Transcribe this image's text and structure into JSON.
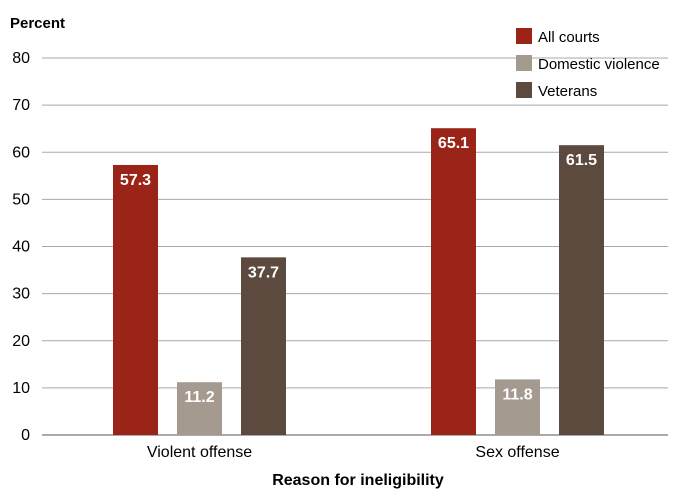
{
  "chart_data": {
    "type": "bar",
    "ylabel": "Percent",
    "xlabel": "Reason for ineligibility",
    "ylim": [
      0,
      80
    ],
    "yticks": [
      0,
      10,
      20,
      30,
      40,
      50,
      60,
      70,
      80
    ],
    "grid": true,
    "legend_position": "top-right",
    "categories": [
      "Violent offense",
      "Sex offense"
    ],
    "series": [
      {
        "name": "All courts",
        "color": "#9b2419",
        "values": [
          57.3,
          65.1
        ],
        "labels": [
          "57.3",
          "65.1"
        ]
      },
      {
        "name": "Domestic violence",
        "color": "#a59a90",
        "values": [
          11.2,
          11.8
        ],
        "labels": [
          "11.2",
          "11.8"
        ]
      },
      {
        "name": "Veterans",
        "color": "#5c4a3e",
        "values": [
          37.7,
          61.5
        ],
        "labels": [
          "37.7",
          "61.5"
        ]
      }
    ]
  }
}
